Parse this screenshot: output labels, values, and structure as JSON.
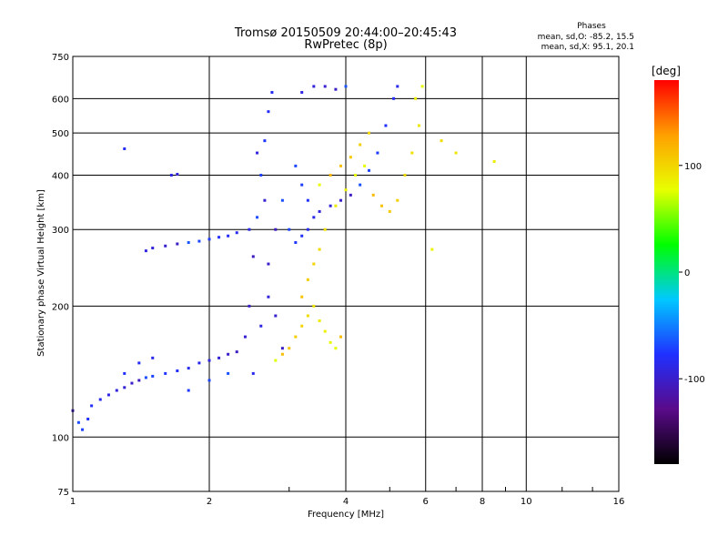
{
  "chart_data": {
    "type": "scatter",
    "title": "Tromsø 20150509 20:44:00–20:45:43",
    "subtitle": "RwPretec (8p)",
    "xlabel": "Frequency [MHz]",
    "ylabel": "Stationary phase Virtual Height [km]",
    "x_scale": "log",
    "y_scale": "log",
    "xlim": [
      1,
      16
    ],
    "ylim": [
      75,
      750
    ],
    "x_ticks": [
      1,
      2,
      4,
      6,
      8,
      10,
      16
    ],
    "y_ticks": [
      75,
      100,
      200,
      300,
      400,
      500,
      600,
      750
    ],
    "grid": true,
    "phases": {
      "title": "Phases",
      "line_o": "mean, sd,O: -85.2, 15.5",
      "line_x": "mean, sd,X:  95.1, 20.1"
    },
    "colorbar": {
      "label": "[deg]",
      "range": [
        -180,
        180
      ],
      "ticks": [
        "100",
        "0",
        "-100"
      ],
      "tick_values": [
        100,
        0,
        -100
      ],
      "colors": [
        "#000000",
        "#5a0a8a",
        "#2030ff",
        "#00c8ff",
        "#00ff00",
        "#e8ff00",
        "#ffa000",
        "#ff0000"
      ]
    },
    "series": [
      {
        "name": "O",
        "phase_deg": -85,
        "points": [
          [
            1.0,
            115
          ],
          [
            1.03,
            108
          ],
          [
            1.05,
            104
          ],
          [
            1.08,
            110
          ],
          [
            1.1,
            118
          ],
          [
            1.15,
            122
          ],
          [
            1.2,
            125
          ],
          [
            1.25,
            128
          ],
          [
            1.3,
            130
          ],
          [
            1.35,
            133
          ],
          [
            1.4,
            135
          ],
          [
            1.45,
            137
          ],
          [
            1.5,
            138
          ],
          [
            1.6,
            140
          ],
          [
            1.7,
            142
          ],
          [
            1.8,
            144
          ],
          [
            1.9,
            148
          ],
          [
            2.0,
            150
          ],
          [
            2.1,
            152
          ],
          [
            2.2,
            155
          ],
          [
            2.3,
            157
          ],
          [
            2.2,
            140
          ],
          [
            2.0,
            135
          ],
          [
            1.8,
            128
          ],
          [
            1.3,
            140
          ],
          [
            1.4,
            148
          ],
          [
            1.5,
            152
          ],
          [
            1.45,
            268
          ],
          [
            1.5,
            272
          ],
          [
            1.6,
            275
          ],
          [
            1.7,
            278
          ],
          [
            1.8,
            280
          ],
          [
            1.9,
            282
          ],
          [
            2.0,
            285
          ],
          [
            2.1,
            288
          ],
          [
            2.2,
            290
          ],
          [
            2.3,
            295
          ],
          [
            1.65,
            400
          ],
          [
            1.7,
            402
          ],
          [
            2.4,
            170
          ],
          [
            2.45,
            200
          ],
          [
            2.5,
            260
          ],
          [
            2.55,
            320
          ],
          [
            2.6,
            400
          ],
          [
            2.65,
            480
          ],
          [
            2.7,
            560
          ],
          [
            2.75,
            620
          ],
          [
            2.45,
            300
          ],
          [
            2.55,
            450
          ],
          [
            2.65,
            350
          ],
          [
            2.7,
            250
          ],
          [
            2.8,
            300
          ],
          [
            2.9,
            350
          ],
          [
            3.0,
            300
          ],
          [
            3.1,
            280
          ],
          [
            3.2,
            290
          ],
          [
            3.3,
            300
          ],
          [
            3.4,
            320
          ],
          [
            3.5,
            330
          ],
          [
            3.7,
            340
          ],
          [
            3.9,
            350
          ],
          [
            4.1,
            360
          ],
          [
            4.3,
            380
          ],
          [
            4.5,
            410
          ],
          [
            4.7,
            450
          ],
          [
            4.9,
            520
          ],
          [
            5.1,
            600
          ],
          [
            5.2,
            640
          ],
          [
            3.2,
            620
          ],
          [
            3.4,
            640
          ],
          [
            3.6,
            640
          ],
          [
            3.8,
            630
          ],
          [
            4.0,
            640
          ],
          [
            3.1,
            420
          ],
          [
            3.2,
            380
          ],
          [
            3.3,
            350
          ],
          [
            1.3,
            460
          ],
          [
            2.5,
            140
          ],
          [
            2.6,
            180
          ],
          [
            2.7,
            210
          ],
          [
            2.8,
            190
          ],
          [
            2.9,
            160
          ]
        ]
      },
      {
        "name": "X",
        "phase_deg": 95,
        "points": [
          [
            2.8,
            150
          ],
          [
            2.9,
            155
          ],
          [
            3.0,
            160
          ],
          [
            3.1,
            170
          ],
          [
            3.2,
            180
          ],
          [
            3.3,
            190
          ],
          [
            3.4,
            200
          ],
          [
            3.5,
            185
          ],
          [
            3.6,
            175
          ],
          [
            3.7,
            165
          ],
          [
            3.8,
            160
          ],
          [
            3.9,
            170
          ],
          [
            3.2,
            210
          ],
          [
            3.3,
            230
          ],
          [
            3.4,
            250
          ],
          [
            3.5,
            270
          ],
          [
            3.6,
            300
          ],
          [
            3.8,
            340
          ],
          [
            4.0,
            370
          ],
          [
            4.2,
            400
          ],
          [
            4.4,
            420
          ],
          [
            4.6,
            360
          ],
          [
            4.8,
            340
          ],
          [
            5.0,
            330
          ],
          [
            5.2,
            350
          ],
          [
            5.4,
            400
          ],
          [
            5.6,
            450
          ],
          [
            5.8,
            520
          ],
          [
            5.7,
            600
          ],
          [
            5.9,
            640
          ],
          [
            3.5,
            380
          ],
          [
            3.7,
            400
          ],
          [
            3.9,
            420
          ],
          [
            4.1,
            440
          ],
          [
            4.3,
            470
          ],
          [
            4.5,
            500
          ],
          [
            6.5,
            480
          ],
          [
            7.0,
            450
          ],
          [
            8.5,
            430
          ],
          [
            6.2,
            270
          ]
        ]
      }
    ]
  }
}
